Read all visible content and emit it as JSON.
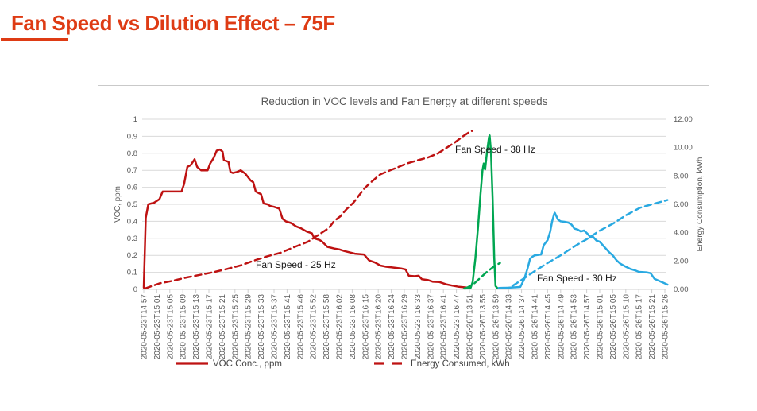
{
  "page_title": "Fan Speed vs Dilution Effect – 75F",
  "accent_color": "#DE3B14",
  "chart_data": {
    "type": "line",
    "title": "Reduction in VOC levels and Fan Energy at different speeds",
    "grid": true,
    "legend_position": "bottom",
    "y_left": {
      "label": "VOC, ppm",
      "min": 0,
      "max": 1,
      "step": 0.1,
      "ticks": [
        "0",
        "0.1",
        "0.2",
        "0.3",
        "0.4",
        "0.5",
        "0.6",
        "0.7",
        "0.8",
        "0.9",
        "1"
      ]
    },
    "y_right": {
      "label": "Energy Consumption, kWh",
      "min": 0,
      "max": 12,
      "step": 2,
      "ticks": [
        "0.00",
        "2.00",
        "4.00",
        "6.00",
        "8.00",
        "10.00",
        "12.00"
      ]
    },
    "x_ticks": [
      "2020-05-23T14:57",
      "2020-05-23T15:01",
      "2020-05-23T15:05",
      "2020-05-23T15:09",
      "2020-05-23T15:13",
      "2020-05-23T15:17",
      "2020-05-23T15:21",
      "2020-05-23T15:25",
      "2020-05-23T15:29",
      "2020-05-23T15:33",
      "2020-05-23T15:37",
      "2020-05-23T15:41",
      "2020-05-23T15:46",
      "2020-05-23T15:52",
      "2020-05-23T15:58",
      "2020-05-23T16:02",
      "2020-05-23T16:08",
      "2020-05-23T16:15",
      "2020-05-23T16:20",
      "2020-05-23T16:24",
      "2020-05-23T16:29",
      "2020-05-23T16:33",
      "2020-05-23T16:37",
      "2020-05-23T16:41",
      "2020-05-23T16:47",
      "2020-05-26T13:51",
      "2020-05-26T13:55",
      "2020-05-26T13:59",
      "2020-05-26T14:33",
      "2020-05-26T14:37",
      "2020-05-26T14:41",
      "2020-05-26T14:45",
      "2020-05-26T14:49",
      "2020-05-26T14:53",
      "2020-05-26T14:57",
      "2020-05-26T15:01",
      "2020-05-26T15:05",
      "2020-05-26T15:10",
      "2020-05-26T15:17",
      "2020-05-26T15:21",
      "2020-05-26T15:26"
    ],
    "series": [
      {
        "name": "VOC Conc., ppm - Fan 25 Hz",
        "color": "#BE1212",
        "dash": false,
        "axis": "left",
        "points": [
          [
            0,
            0.01
          ],
          [
            0.15,
            0.42
          ],
          [
            0.35,
            0.5
          ],
          [
            0.8,
            0.51
          ],
          [
            1.2,
            0.53
          ],
          [
            1.45,
            0.575
          ],
          [
            2.9,
            0.575
          ],
          [
            3.1,
            0.62
          ],
          [
            3.35,
            0.72
          ],
          [
            3.6,
            0.73
          ],
          [
            3.9,
            0.765
          ],
          [
            4.1,
            0.72
          ],
          [
            4.4,
            0.7
          ],
          [
            4.9,
            0.7
          ],
          [
            5.1,
            0.74
          ],
          [
            5.35,
            0.77
          ],
          [
            5.6,
            0.815
          ],
          [
            5.85,
            0.822
          ],
          [
            6.05,
            0.81
          ],
          [
            6.15,
            0.76
          ],
          [
            6.5,
            0.75
          ],
          [
            6.65,
            0.69
          ],
          [
            6.85,
            0.684
          ],
          [
            7.15,
            0.69
          ],
          [
            7.45,
            0.7
          ],
          [
            7.8,
            0.68
          ],
          [
            8.2,
            0.64
          ],
          [
            8.4,
            0.63
          ],
          [
            8.6,
            0.575
          ],
          [
            8.8,
            0.567
          ],
          [
            9.0,
            0.56
          ],
          [
            9.2,
            0.505
          ],
          [
            9.5,
            0.5
          ],
          [
            9.7,
            0.49
          ],
          [
            10.0,
            0.485
          ],
          [
            10.4,
            0.475
          ],
          [
            10.65,
            0.415
          ],
          [
            10.9,
            0.4
          ],
          [
            11.3,
            0.39
          ],
          [
            11.7,
            0.37
          ],
          [
            12.1,
            0.358
          ],
          [
            12.5,
            0.34
          ],
          [
            12.9,
            0.33
          ],
          [
            13.1,
            0.3
          ],
          [
            13.5,
            0.29
          ],
          [
            13.7,
            0.28
          ],
          [
            14.1,
            0.25
          ],
          [
            14.6,
            0.24
          ],
          [
            15.0,
            0.235
          ],
          [
            15.4,
            0.225
          ],
          [
            16.2,
            0.21
          ],
          [
            16.9,
            0.205
          ],
          [
            17.3,
            0.17
          ],
          [
            17.75,
            0.158
          ],
          [
            18.15,
            0.14
          ],
          [
            18.6,
            0.133
          ],
          [
            19.0,
            0.13
          ],
          [
            19.75,
            0.123
          ],
          [
            20.1,
            0.117
          ],
          [
            20.35,
            0.08
          ],
          [
            20.8,
            0.077
          ],
          [
            21.1,
            0.08
          ],
          [
            21.35,
            0.06
          ],
          [
            21.8,
            0.055
          ],
          [
            22.2,
            0.045
          ],
          [
            22.7,
            0.043
          ],
          [
            23.2,
            0.03
          ],
          [
            23.7,
            0.022
          ],
          [
            24.2,
            0.015
          ],
          [
            24.9,
            0.01
          ]
        ]
      },
      {
        "name": "Energy Consumed, kWh - Fan 25 Hz",
        "color": "#BE1212",
        "dash": true,
        "axis": "right",
        "points": [
          [
            0.1,
            0.06
          ],
          [
            1.2,
            0.42
          ],
          [
            2.2,
            0.6
          ],
          [
            3.3,
            0.84
          ],
          [
            4.3,
            1.02
          ],
          [
            5.3,
            1.2
          ],
          [
            6.4,
            1.44
          ],
          [
            7.4,
            1.68
          ],
          [
            8.5,
            2.04
          ],
          [
            9.5,
            2.34
          ],
          [
            10.5,
            2.58
          ],
          [
            11.6,
            3.0
          ],
          [
            12.6,
            3.36
          ],
          [
            13.0,
            3.6
          ],
          [
            13.6,
            3.96
          ],
          [
            14.2,
            4.32
          ],
          [
            14.6,
            4.8
          ],
          [
            15.1,
            5.16
          ],
          [
            15.55,
            5.64
          ],
          [
            16.1,
            6.12
          ],
          [
            16.5,
            6.6
          ],
          [
            16.9,
            7.08
          ],
          [
            17.3,
            7.44
          ],
          [
            17.75,
            7.8
          ],
          [
            18.15,
            8.11
          ],
          [
            18.6,
            8.28
          ],
          [
            19.4,
            8.58
          ],
          [
            20.2,
            8.88
          ],
          [
            21.0,
            9.1
          ],
          [
            21.8,
            9.3
          ],
          [
            22.6,
            9.6
          ],
          [
            23.3,
            10.02
          ],
          [
            23.9,
            10.38
          ],
          [
            24.5,
            10.8
          ],
          [
            25.0,
            11.1
          ],
          [
            25.2,
            11.18
          ]
        ]
      },
      {
        "name": "VOC Conc., ppm - Fan 38 Hz",
        "color": "#00A651",
        "dash": false,
        "axis": "left",
        "points": [
          [
            24.6,
            0.005
          ],
          [
            25.1,
            0.01
          ],
          [
            25.25,
            0.045
          ],
          [
            25.45,
            0.18
          ],
          [
            25.65,
            0.36
          ],
          [
            25.85,
            0.56
          ],
          [
            26.0,
            0.7
          ],
          [
            26.1,
            0.74
          ],
          [
            26.2,
            0.705
          ],
          [
            26.35,
            0.81
          ],
          [
            26.5,
            0.895
          ],
          [
            26.55,
            0.905
          ],
          [
            26.65,
            0.81
          ],
          [
            26.78,
            0.53
          ],
          [
            26.9,
            0.185
          ],
          [
            27.0,
            0.02
          ],
          [
            27.15,
            0.006
          ]
        ]
      },
      {
        "name": "Energy Consumed, kWh - Fan 38 Hz",
        "color": "#00A651",
        "dash": true,
        "axis": "right",
        "points": [
          [
            24.7,
            0.06
          ],
          [
            25.3,
            0.36
          ],
          [
            25.8,
            0.78
          ],
          [
            26.3,
            1.2
          ],
          [
            26.8,
            1.56
          ],
          [
            27.1,
            1.74
          ],
          [
            27.35,
            1.86
          ]
        ]
      },
      {
        "name": "VOC Conc., ppm - Fan 30 Hz",
        "color": "#29A9E1",
        "dash": false,
        "axis": "left",
        "points": [
          [
            27.25,
            0.008
          ],
          [
            28.0,
            0.01
          ],
          [
            28.9,
            0.014
          ],
          [
            29.2,
            0.06
          ],
          [
            29.45,
            0.12
          ],
          [
            29.65,
            0.18
          ],
          [
            29.8,
            0.19
          ],
          [
            30.0,
            0.2
          ],
          [
            30.5,
            0.205
          ],
          [
            30.7,
            0.26
          ],
          [
            31.0,
            0.29
          ],
          [
            31.2,
            0.34
          ],
          [
            31.35,
            0.4
          ],
          [
            31.5,
            0.443
          ],
          [
            31.55,
            0.45
          ],
          [
            31.8,
            0.41
          ],
          [
            32.0,
            0.4
          ],
          [
            32.3,
            0.397
          ],
          [
            32.6,
            0.392
          ],
          [
            32.85,
            0.38
          ],
          [
            33.05,
            0.357
          ],
          [
            33.3,
            0.352
          ],
          [
            33.55,
            0.34
          ],
          [
            33.8,
            0.346
          ],
          [
            34.05,
            0.328
          ],
          [
            34.3,
            0.305
          ],
          [
            34.5,
            0.308
          ],
          [
            34.75,
            0.287
          ],
          [
            35.0,
            0.28
          ],
          [
            35.35,
            0.25
          ],
          [
            35.7,
            0.22
          ],
          [
            36.0,
            0.2
          ],
          [
            36.3,
            0.17
          ],
          [
            36.6,
            0.15
          ],
          [
            37.0,
            0.133
          ],
          [
            37.35,
            0.12
          ],
          [
            37.7,
            0.112
          ],
          [
            38.0,
            0.103
          ],
          [
            38.6,
            0.1
          ],
          [
            38.9,
            0.095
          ],
          [
            39.2,
            0.062
          ],
          [
            39.55,
            0.05
          ],
          [
            39.85,
            0.04
          ],
          [
            40.2,
            0.028
          ]
        ]
      },
      {
        "name": "Energy Consumed, kWh - Fan 30 Hz",
        "color": "#29A9E1",
        "dash": true,
        "axis": "right",
        "points": [
          [
            28.3,
            0.24
          ],
          [
            29.0,
            0.66
          ],
          [
            30.0,
            1.28
          ],
          [
            31.0,
            1.86
          ],
          [
            32.0,
            2.4
          ],
          [
            33.0,
            3.0
          ],
          [
            34.0,
            3.54
          ],
          [
            35.0,
            4.14
          ],
          [
            36.1,
            4.68
          ],
          [
            37.0,
            5.22
          ],
          [
            38.1,
            5.76
          ],
          [
            39.0,
            6.0
          ],
          [
            40.2,
            6.3
          ]
        ]
      }
    ],
    "annotations": [
      {
        "text": "Fan Speed - 25 Hz",
        "x": 198,
        "y": 229
      },
      {
        "text": "Fan Speed - 38 Hz",
        "x": 449,
        "y": 84
      },
      {
        "text": "Fan Speed - 30 Hz",
        "x": 552,
        "y": 246
      }
    ],
    "legend": [
      {
        "label": "VOC Conc., ppm",
        "dash": false,
        "color": "#BE1212"
      },
      {
        "label": "Energy Consumed, kWh",
        "dash": true,
        "color": "#BE1212"
      }
    ]
  }
}
